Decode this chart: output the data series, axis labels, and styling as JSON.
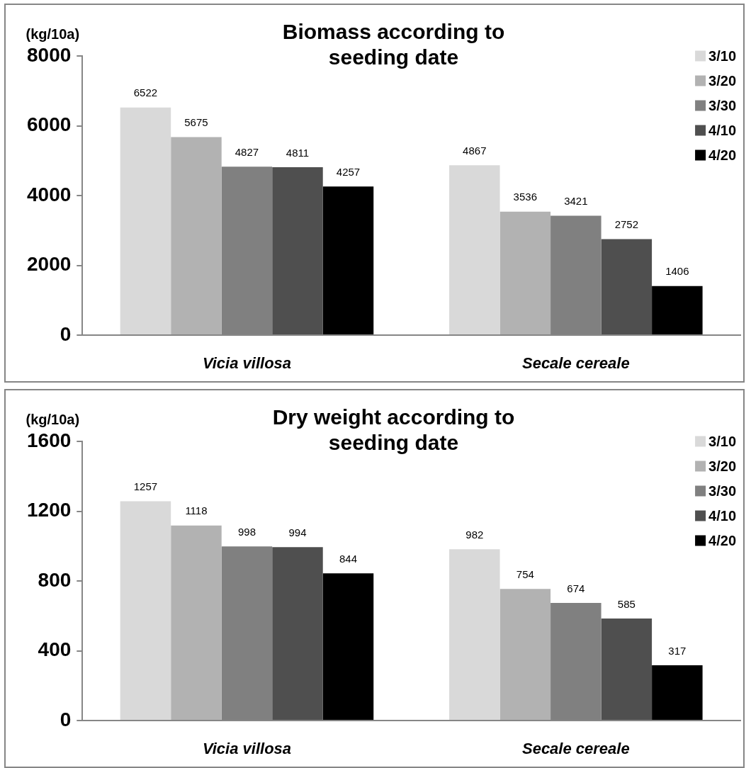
{
  "chart_data": [
    {
      "type": "bar",
      "title": "Biomass according to seeding date",
      "ylabel": "(kg/10a)",
      "categories": [
        "Vicia villosa",
        "Secale cereale"
      ],
      "series": [
        {
          "name": "3/10",
          "color": "#d9d9d9",
          "values": [
            6522,
            4867
          ]
        },
        {
          "name": "3/20",
          "color": "#b2b2b2",
          "values": [
            5675,
            3536
          ]
        },
        {
          "name": "3/30",
          "color": "#808080",
          "values": [
            4827,
            3421
          ]
        },
        {
          "name": "4/10",
          "color": "#4f4f4f",
          "values": [
            4811,
            2752
          ]
        },
        {
          "name": "4/20",
          "color": "#000000",
          "values": [
            4257,
            1406
          ]
        }
      ],
      "ylim": [
        0,
        8000
      ],
      "yticks": [
        0,
        2000,
        4000,
        6000,
        8000
      ],
      "legend": "top right",
      "data_labels": true
    },
    {
      "type": "bar",
      "title": "Dry weight according to seeding date",
      "ylabel": "(kg/10a)",
      "categories": [
        "Vicia villosa",
        "Secale cereale"
      ],
      "series": [
        {
          "name": "3/10",
          "color": "#d9d9d9",
          "values": [
            1257,
            982
          ]
        },
        {
          "name": "3/20",
          "color": "#b2b2b2",
          "values": [
            1118,
            754
          ]
        },
        {
          "name": "3/30",
          "color": "#808080",
          "values": [
            998,
            674
          ]
        },
        {
          "name": "4/10",
          "color": "#4f4f4f",
          "values": [
            994,
            585
          ]
        },
        {
          "name": "4/20",
          "color": "#000000",
          "values": [
            844,
            317
          ]
        }
      ],
      "ylim": [
        0,
        1600
      ],
      "yticks": [
        0,
        400,
        800,
        1200,
        1600
      ],
      "legend": "top right",
      "data_labels": true
    }
  ]
}
